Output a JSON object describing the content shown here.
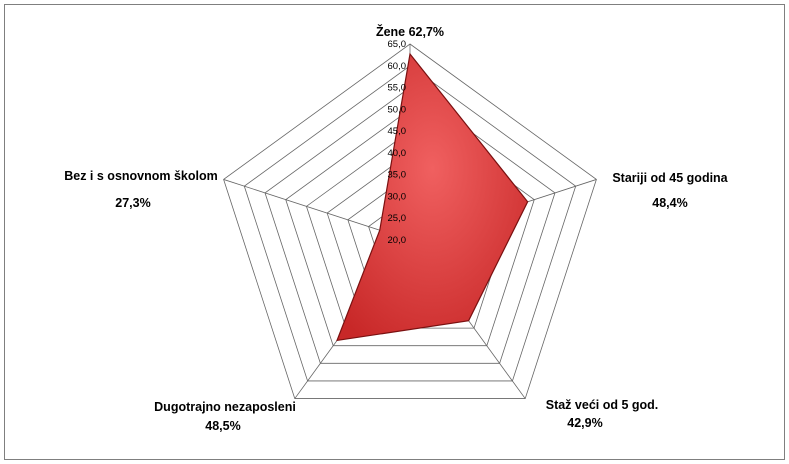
{
  "chart_data": {
    "type": "radar",
    "axis": {
      "min": 20.0,
      "max": 65.0,
      "step": 5.0,
      "tick_labels": [
        "20,0",
        "25,0",
        "30,0",
        "35,0",
        "40,0",
        "45,0",
        "50,0",
        "55,0",
        "60,0",
        "65,0"
      ]
    },
    "categories": [
      {
        "label": "Žene 62,7%",
        "value_label": "",
        "value": 62.7
      },
      {
        "label": "Stariji od 45 godina",
        "value_label": "48,4%",
        "value": 48.4
      },
      {
        "label": "Staž veći od 5 god.",
        "value_label": "42,9%",
        "value": 42.9
      },
      {
        "label": "Dugotrajno nezaposleni",
        "value_label": "48,5%",
        "value": 48.5
      },
      {
        "label": "Bez i s osnovnom školom",
        "value_label": "27,3%",
        "value": 27.3
      }
    ],
    "grid": true,
    "legend": "none",
    "colors": {
      "fill": "#d63a3a",
      "stroke": "#7a1010",
      "grid": "#666666"
    }
  }
}
